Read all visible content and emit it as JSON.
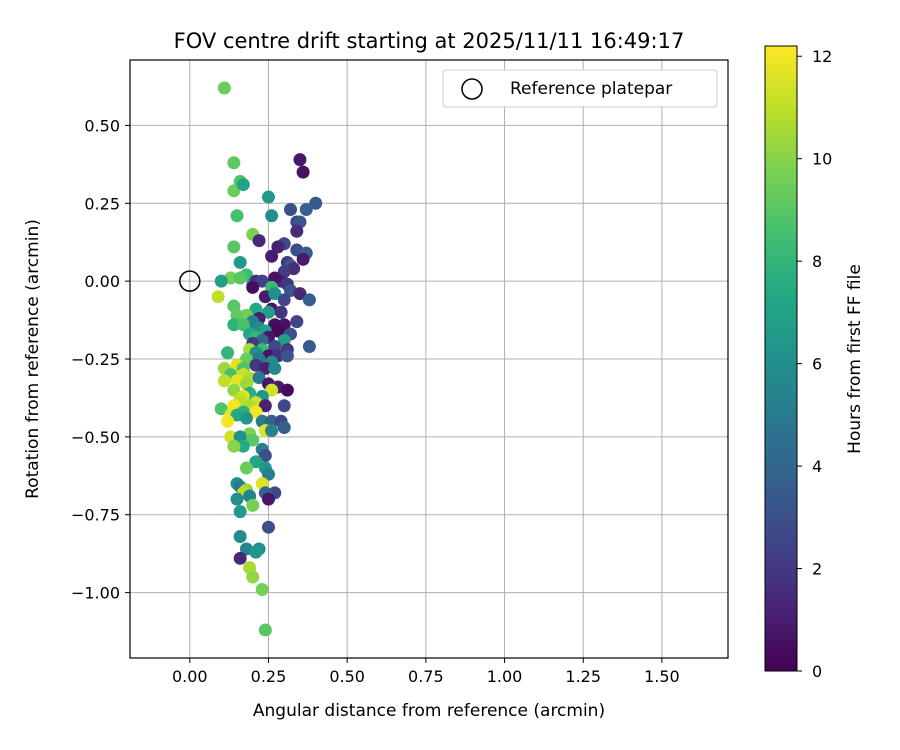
{
  "chart_data": {
    "type": "scatter",
    "title": "FOV centre drift starting at 2025/11/11 16:49:17",
    "xlabel": "Angular distance from reference (arcmin)",
    "ylabel": "Rotation from reference (arcmin)",
    "xlim": [
      -0.19,
      1.71
    ],
    "ylim": [
      -1.21,
      0.71
    ],
    "xticks": [
      0.0,
      0.25,
      0.5,
      0.75,
      1.0,
      1.25,
      1.5
    ],
    "xtick_labels": [
      "0.00",
      "0.25",
      "0.50",
      "0.75",
      "1.00",
      "1.25",
      "1.50"
    ],
    "yticks": [
      0.5,
      0.25,
      0.0,
      -0.25,
      -0.5,
      -0.75,
      -1.0
    ],
    "ytick_labels": [
      "0.50",
      "0.25",
      "0.00",
      "−0.25",
      "−0.50",
      "−0.75",
      "−1.00"
    ],
    "grid": true,
    "legend": {
      "position": "top-right",
      "entries": [
        "Reference platepar"
      ]
    },
    "reference_point": {
      "x": 0.0,
      "y": 0.0
    },
    "colorbar": {
      "label": "Hours from first FF file",
      "min": 0,
      "max": 12.2,
      "ticks": [
        0,
        2,
        4,
        6,
        8,
        10,
        12
      ],
      "tick_labels": [
        "0",
        "2",
        "4",
        "6",
        "8",
        "10",
        "12"
      ],
      "colormap": "viridis"
    },
    "points": [
      [
        0.11,
        0.62,
        9.4
      ],
      [
        0.35,
        0.39,
        0.8
      ],
      [
        0.36,
        0.35,
        0.6
      ],
      [
        0.14,
        0.38,
        9.2
      ],
      [
        0.16,
        0.32,
        8.8
      ],
      [
        0.14,
        0.29,
        9.4
      ],
      [
        0.17,
        0.31,
        7.0
      ],
      [
        0.4,
        0.25,
        3.4
      ],
      [
        0.32,
        0.23,
        3.0
      ],
      [
        0.37,
        0.23,
        3.8
      ],
      [
        0.25,
        0.27,
        6.5
      ],
      [
        0.26,
        0.21,
        6.0
      ],
      [
        0.15,
        0.21,
        8.6
      ],
      [
        0.34,
        0.19,
        2.4
      ],
      [
        0.35,
        0.19,
        3.2
      ],
      [
        0.34,
        0.16,
        1.6
      ],
      [
        0.2,
        0.15,
        9.8
      ],
      [
        0.22,
        0.13,
        1.4
      ],
      [
        0.3,
        0.12,
        2.6
      ],
      [
        0.14,
        0.11,
        9.0
      ],
      [
        0.28,
        0.11,
        1.2
      ],
      [
        0.34,
        0.1,
        3.0
      ],
      [
        0.37,
        0.09,
        3.6
      ],
      [
        0.36,
        0.07,
        0.9
      ],
      [
        0.26,
        0.08,
        1.0
      ],
      [
        0.31,
        0.06,
        2.0
      ],
      [
        0.32,
        0.05,
        3.4
      ],
      [
        0.16,
        0.06,
        6.6
      ],
      [
        0.33,
        0.04,
        1.6
      ],
      [
        0.3,
        0.03,
        2.2
      ],
      [
        0.18,
        0.02,
        8.4
      ],
      [
        0.13,
        0.01,
        9.6
      ],
      [
        0.16,
        0.01,
        9.0
      ],
      [
        0.1,
        0.0,
        6.8
      ],
      [
        0.2,
        -0.01,
        7.4
      ],
      [
        0.21,
        0.0,
        1.8
      ],
      [
        0.23,
        0.0,
        2.4
      ],
      [
        0.29,
        0.0,
        1.2
      ],
      [
        0.27,
        0.01,
        0.6
      ],
      [
        0.31,
        -0.01,
        1.8
      ],
      [
        0.2,
        -0.02,
        0.4
      ],
      [
        0.26,
        -0.02,
        8.2
      ],
      [
        0.09,
        -0.05,
        11.0
      ],
      [
        0.24,
        -0.05,
        1.0
      ],
      [
        0.27,
        -0.04,
        6.0
      ],
      [
        0.32,
        -0.03,
        3.2
      ],
      [
        0.35,
        -0.04,
        1.4
      ],
      [
        0.38,
        -0.06,
        3.6
      ],
      [
        0.3,
        -0.06,
        2.6
      ],
      [
        0.14,
        -0.08,
        9.0
      ],
      [
        0.21,
        -0.09,
        7.4
      ],
      [
        0.26,
        -0.09,
        0.8
      ],
      [
        0.29,
        -0.1,
        1.8
      ],
      [
        0.18,
        -0.11,
        9.6
      ],
      [
        0.15,
        -0.11,
        9.2
      ],
      [
        0.25,
        -0.1,
        6.8
      ],
      [
        0.22,
        -0.12,
        1.0
      ],
      [
        0.2,
        -0.13,
        5.2
      ],
      [
        0.34,
        -0.13,
        2.4
      ],
      [
        0.14,
        -0.14,
        7.8
      ],
      [
        0.17,
        -0.14,
        8.6
      ],
      [
        0.27,
        -0.14,
        0.4
      ],
      [
        0.3,
        -0.14,
        0.6
      ],
      [
        0.22,
        -0.15,
        5.8
      ],
      [
        0.24,
        -0.16,
        7.0
      ],
      [
        0.28,
        -0.16,
        0.2
      ],
      [
        0.19,
        -0.17,
        7.2
      ],
      [
        0.32,
        -0.17,
        3.0
      ],
      [
        0.21,
        -0.18,
        8.0
      ],
      [
        0.25,
        -0.18,
        0.8
      ],
      [
        0.23,
        -0.19,
        4.0
      ],
      [
        0.3,
        -0.19,
        6.8
      ],
      [
        0.2,
        -0.2,
        2.0
      ],
      [
        0.38,
        -0.21,
        3.4
      ],
      [
        0.27,
        -0.21,
        2.6
      ],
      [
        0.23,
        -0.22,
        8.2
      ],
      [
        0.31,
        -0.22,
        2.0
      ],
      [
        0.19,
        -0.22,
        10.6
      ],
      [
        0.12,
        -0.23,
        8.0
      ],
      [
        0.21,
        -0.23,
        6.0
      ],
      [
        0.25,
        -0.24,
        0.6
      ],
      [
        0.28,
        -0.24,
        1.8
      ],
      [
        0.31,
        -0.24,
        3.2
      ],
      [
        0.18,
        -0.25,
        9.4
      ],
      [
        0.22,
        -0.25,
        5.0
      ],
      [
        0.26,
        -0.26,
        5.8
      ],
      [
        0.11,
        -0.28,
        10.4
      ],
      [
        0.15,
        -0.27,
        11.6
      ],
      [
        0.17,
        -0.28,
        8.8
      ],
      [
        0.21,
        -0.27,
        2.0
      ],
      [
        0.24,
        -0.28,
        1.2
      ],
      [
        0.27,
        -0.28,
        5.6
      ],
      [
        0.13,
        -0.3,
        8.6
      ],
      [
        0.17,
        -0.3,
        11.2
      ],
      [
        0.19,
        -0.31,
        10.8
      ],
      [
        0.22,
        -0.31,
        5.0
      ],
      [
        0.15,
        -0.32,
        11.8
      ],
      [
        0.11,
        -0.32,
        11.0
      ],
      [
        0.18,
        -0.33,
        10.4
      ],
      [
        0.25,
        -0.33,
        0.8
      ],
      [
        0.28,
        -0.34,
        1.0
      ],
      [
        0.31,
        -0.35,
        0.4
      ],
      [
        0.14,
        -0.35,
        10.2
      ],
      [
        0.19,
        -0.36,
        7.6
      ],
      [
        0.26,
        -0.35,
        11.4
      ],
      [
        0.17,
        -0.37,
        11.6
      ],
      [
        0.23,
        -0.37,
        6.4
      ],
      [
        0.16,
        -0.38,
        11.0
      ],
      [
        0.21,
        -0.39,
        11.4
      ],
      [
        0.14,
        -0.4,
        12.0
      ],
      [
        0.19,
        -0.4,
        10.8
      ],
      [
        0.24,
        -0.4,
        1.2
      ],
      [
        0.3,
        -0.4,
        2.6
      ],
      [
        0.1,
        -0.41,
        8.8
      ],
      [
        0.17,
        -0.42,
        7.8
      ],
      [
        0.21,
        -0.42,
        12.0
      ],
      [
        0.13,
        -0.43,
        11.8
      ],
      [
        0.15,
        -0.43,
        7.4
      ],
      [
        0.18,
        -0.44,
        6.4
      ],
      [
        0.12,
        -0.45,
        12.0
      ],
      [
        0.23,
        -0.45,
        5.0
      ],
      [
        0.26,
        -0.45,
        3.8
      ],
      [
        0.29,
        -0.45,
        2.6
      ],
      [
        0.3,
        -0.47,
        3.6
      ],
      [
        0.24,
        -0.48,
        11.6
      ],
      [
        0.19,
        -0.49,
        9.8
      ],
      [
        0.26,
        -0.48,
        5.4
      ],
      [
        0.13,
        -0.5,
        11.4
      ],
      [
        0.16,
        -0.5,
        6.2
      ],
      [
        0.2,
        -0.51,
        9.0
      ],
      [
        0.17,
        -0.53,
        7.4
      ],
      [
        0.14,
        -0.53,
        10.0
      ],
      [
        0.23,
        -0.54,
        5.2
      ],
      [
        0.24,
        -0.56,
        3.0
      ],
      [
        0.21,
        -0.58,
        7.2
      ],
      [
        0.24,
        -0.6,
        6.6
      ],
      [
        0.18,
        -0.6,
        9.4
      ],
      [
        0.25,
        -0.62,
        5.2
      ],
      [
        0.15,
        -0.65,
        6.2
      ],
      [
        0.23,
        -0.65,
        11.6
      ],
      [
        0.16,
        -0.66,
        5.0
      ],
      [
        0.18,
        -0.67,
        10.4
      ],
      [
        0.17,
        -0.68,
        11.0
      ],
      [
        0.27,
        -0.68,
        2.6
      ],
      [
        0.24,
        -0.68,
        3.8
      ],
      [
        0.19,
        -0.69,
        5.4
      ],
      [
        0.15,
        -0.7,
        6.0
      ],
      [
        0.25,
        -0.7,
        0.8
      ],
      [
        0.2,
        -0.72,
        9.6
      ],
      [
        0.16,
        -0.74,
        6.6
      ],
      [
        0.25,
        -0.79,
        3.0
      ],
      [
        0.16,
        -0.82,
        5.8
      ],
      [
        0.18,
        -0.86,
        5.6
      ],
      [
        0.22,
        -0.86,
        6.0
      ],
      [
        0.21,
        -0.87,
        6.4
      ],
      [
        0.16,
        -0.89,
        1.4
      ],
      [
        0.19,
        -0.92,
        10.6
      ],
      [
        0.2,
        -0.95,
        10.2
      ],
      [
        0.23,
        -0.99,
        9.6
      ],
      [
        0.24,
        -1.12,
        9.0
      ]
    ]
  }
}
